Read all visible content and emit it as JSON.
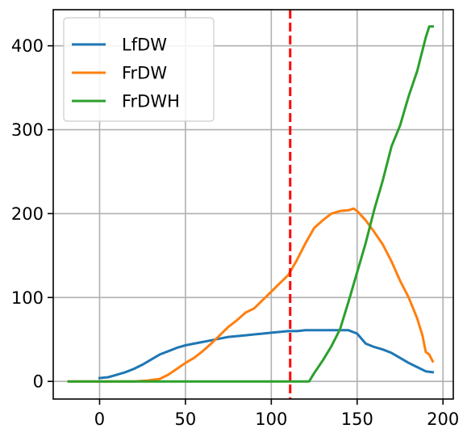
{
  "chart_data": {
    "type": "line",
    "title": "",
    "xlabel": "",
    "ylabel": "",
    "xlim": [
      -27,
      206
    ],
    "ylim": [
      -21,
      443
    ],
    "xticks": [
      0,
      50,
      100,
      150,
      200
    ],
    "yticks": [
      0,
      100,
      200,
      300,
      400
    ],
    "xtick_labels": [
      "0",
      "50",
      "100",
      "150",
      "200"
    ],
    "ytick_labels": [
      "0",
      "100",
      "200",
      "300",
      "400"
    ],
    "grid": true,
    "legend_position": "upper-left",
    "vline": {
      "x": 111,
      "color": "#ff0000",
      "style": "dashed"
    },
    "series": [
      {
        "name": "LfDW",
        "color": "#1f77b4",
        "points": [
          [
            0,
            4
          ],
          [
            5,
            5
          ],
          [
            10,
            8
          ],
          [
            15,
            11
          ],
          [
            20,
            15
          ],
          [
            25,
            20
          ],
          [
            30,
            26
          ],
          [
            35,
            32
          ],
          [
            40,
            36
          ],
          [
            45,
            40
          ],
          [
            50,
            43
          ],
          [
            55,
            45
          ],
          [
            60,
            47
          ],
          [
            65,
            49
          ],
          [
            70,
            51
          ],
          [
            75,
            53
          ],
          [
            80,
            54
          ],
          [
            85,
            55
          ],
          [
            90,
            56
          ],
          [
            95,
            57
          ],
          [
            100,
            58
          ],
          [
            105,
            59
          ],
          [
            110,
            60
          ],
          [
            115,
            60
          ],
          [
            120,
            61
          ],
          [
            125,
            61
          ],
          [
            130,
            61
          ],
          [
            135,
            61
          ],
          [
            140,
            61
          ],
          [
            145,
            61
          ],
          [
            150,
            57
          ],
          [
            155,
            45
          ],
          [
            160,
            41
          ],
          [
            165,
            38
          ],
          [
            170,
            34
          ],
          [
            175,
            28
          ],
          [
            180,
            22
          ],
          [
            185,
            17
          ],
          [
            190,
            12
          ],
          [
            194,
            11
          ]
        ]
      },
      {
        "name": "FrDW",
        "color": "#ff7f0e",
        "points": [
          [
            -18,
            0
          ],
          [
            0,
            0
          ],
          [
            10,
            0
          ],
          [
            20,
            0
          ],
          [
            28,
            1
          ],
          [
            35,
            3
          ],
          [
            40,
            8
          ],
          [
            45,
            15
          ],
          [
            50,
            22
          ],
          [
            55,
            28
          ],
          [
            60,
            36
          ],
          [
            65,
            45
          ],
          [
            70,
            55
          ],
          [
            75,
            65
          ],
          [
            80,
            73
          ],
          [
            85,
            82
          ],
          [
            90,
            87
          ],
          [
            95,
            97
          ],
          [
            100,
            107
          ],
          [
            105,
            117
          ],
          [
            110,
            127
          ],
          [
            115,
            145
          ],
          [
            120,
            165
          ],
          [
            125,
            183
          ],
          [
            130,
            192
          ],
          [
            135,
            200
          ],
          [
            140,
            203
          ],
          [
            145,
            204
          ],
          [
            148,
            206
          ],
          [
            150,
            203
          ],
          [
            155,
            192
          ],
          [
            160,
            178
          ],
          [
            165,
            163
          ],
          [
            170,
            143
          ],
          [
            175,
            120
          ],
          [
            180,
            100
          ],
          [
            185,
            75
          ],
          [
            188,
            55
          ],
          [
            190,
            35
          ],
          [
            192,
            32
          ],
          [
            194,
            24
          ]
        ]
      },
      {
        "name": "FrDWH",
        "color": "#2ca02c",
        "points": [
          [
            -18,
            0
          ],
          [
            0,
            0
          ],
          [
            20,
            0
          ],
          [
            40,
            0
          ],
          [
            60,
            0
          ],
          [
            80,
            0
          ],
          [
            100,
            0
          ],
          [
            110,
            0
          ],
          [
            122,
            0
          ],
          [
            125,
            10
          ],
          [
            130,
            25
          ],
          [
            135,
            42
          ],
          [
            140,
            62
          ],
          [
            145,
            95
          ],
          [
            150,
            130
          ],
          [
            155,
            165
          ],
          [
            160,
            205
          ],
          [
            165,
            240
          ],
          [
            170,
            280
          ],
          [
            175,
            305
          ],
          [
            180,
            340
          ],
          [
            185,
            370
          ],
          [
            190,
            410
          ],
          [
            192,
            423
          ],
          [
            194,
            423
          ]
        ]
      }
    ]
  }
}
